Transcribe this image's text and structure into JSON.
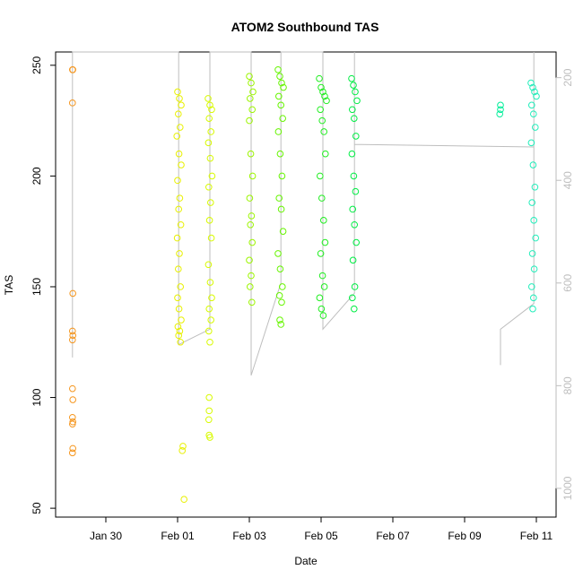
{
  "chart_data": {
    "type": "scatter",
    "title": "ATOM2 Southbound TAS",
    "xlabel": "Date",
    "ylabel": "TAS",
    "xlim": [
      -1.4,
      12.55
    ],
    "ylim": [
      46,
      256
    ],
    "y2lim": [
      1056,
      150
    ],
    "xticks": [
      {
        "value": 0,
        "label": "Jan 30"
      },
      {
        "value": 2,
        "label": "Feb 01"
      },
      {
        "value": 4,
        "label": "Feb 03"
      },
      {
        "value": 6,
        "label": "Feb 05"
      },
      {
        "value": 8,
        "label": "Feb 07"
      },
      {
        "value": 10,
        "label": "Feb 09"
      },
      {
        "value": 12,
        "label": "Feb 11"
      }
    ],
    "yticks": [
      50,
      100,
      150,
      200,
      250
    ],
    "y2ticks": [
      200,
      400,
      600,
      800,
      1000
    ],
    "y2tick_color": "#bebebe",
    "series": [
      {
        "type": "line",
        "axis": "y2",
        "color": "#bebebe",
        "x": [
          -0.93,
          -0.93,
          2.03,
          2.03,
          2.9,
          2.9,
          4.05,
          4.05,
          4.88,
          4.88,
          6.05,
          6.05,
          6.93,
          6.93,
          6.93,
          11.93,
          11.93,
          11.93,
          11.0,
          11.0
        ],
        "values": [
          745,
          150,
          150,
          720,
          690,
          150,
          150,
          780,
          600,
          150,
          150,
          690,
          620,
          150,
          330,
          335,
          150,
          640,
          690,
          760
        ]
      },
      {
        "color": "#f5961e",
        "x": [
          -0.93,
          -0.92,
          -0.93,
          -0.92,
          -0.93,
          -0.92,
          -0.93,
          -0.93,
          -0.92,
          -0.93,
          -0.92,
          -0.93,
          -0.92,
          -0.93
        ],
        "values": [
          248,
          248,
          233,
          147,
          130,
          128,
          126,
          104,
          99,
          91,
          89,
          88,
          77,
          75
        ]
      },
      {
        "color": "#e8f000",
        "x": [
          2.0,
          2.05,
          2.1,
          2.02,
          2.07,
          1.98,
          2.04,
          2.1,
          2.0,
          2.06,
          2.03,
          2.09,
          1.99,
          2.05,
          2.02,
          2.08,
          2.0,
          2.04,
          2.1,
          2.01,
          2.06,
          2.03,
          2.08,
          2.15,
          2.13,
          2.18
        ],
        "values": [
          238,
          235,
          232,
          228,
          222,
          218,
          210,
          205,
          198,
          190,
          185,
          178,
          172,
          165,
          158,
          150,
          145,
          140,
          135,
          132,
          130,
          128,
          125,
          78,
          76,
          54
        ]
      },
      {
        "color": "#d8fa00",
        "x": [
          2.85,
          2.9,
          2.95,
          2.88,
          2.93,
          2.86,
          2.91,
          2.96,
          2.87,
          2.92,
          2.89,
          2.94,
          2.86,
          2.91,
          2.95,
          2.88,
          2.93,
          2.87,
          2.9,
          2.88,
          2.88,
          2.87,
          2.88,
          2.9
        ],
        "values": [
          235,
          232,
          230,
          226,
          220,
          215,
          208,
          200,
          195,
          188,
          180,
          172,
          160,
          152,
          145,
          140,
          135,
          130,
          125,
          100,
          94,
          90,
          83,
          82
        ]
      },
      {
        "color": "#9cf500",
        "x": [
          4.0,
          4.05,
          4.1,
          4.02,
          4.08,
          4.0,
          4.04,
          4.09,
          4.01,
          4.06,
          4.03,
          4.08,
          4.0,
          4.05,
          4.02,
          4.07
        ],
        "values": [
          245,
          242,
          238,
          235,
          230,
          225,
          210,
          200,
          190,
          182,
          178,
          170,
          162,
          155,
          150,
          143
        ]
      },
      {
        "color": "#66f500",
        "x": [
          4.8,
          4.85,
          4.9,
          4.95,
          4.82,
          4.88,
          4.93,
          4.81,
          4.86,
          4.91,
          4.83,
          4.89,
          4.94,
          4.8,
          4.86,
          4.92,
          4.84,
          4.9,
          4.85,
          4.88
        ],
        "values": [
          248,
          245,
          242,
          240,
          236,
          232,
          226,
          220,
          210,
          200,
          190,
          185,
          175,
          165,
          158,
          150,
          146,
          143,
          135,
          133
        ]
      },
      {
        "color": "#22ee22",
        "x": [
          5.95,
          6.0,
          6.05,
          6.1,
          6.15,
          5.98,
          6.03,
          6.08,
          6.12,
          5.97,
          6.02,
          6.07,
          6.11,
          5.99,
          6.04,
          6.09,
          5.96,
          6.01,
          6.06
        ],
        "values": [
          244,
          240,
          238,
          236,
          234,
          230,
          225,
          220,
          210,
          200,
          190,
          180,
          170,
          165,
          155,
          150,
          145,
          140,
          137
        ]
      },
      {
        "color": "#00ee44",
        "x": [
          6.85,
          6.9,
          6.95,
          7.0,
          6.87,
          6.92,
          6.97,
          6.86,
          6.91,
          6.96,
          6.88,
          6.93,
          6.98,
          6.89,
          6.94,
          6.87,
          6.92
        ],
        "values": [
          244,
          241,
          238,
          234,
          230,
          226,
          218,
          210,
          200,
          193,
          185,
          178,
          170,
          162,
          150,
          145,
          140
        ]
      },
      {
        "color": "#00ee99",
        "x": [
          11.0,
          11.0,
          10.98
        ],
        "values": [
          232,
          230,
          228
        ]
      },
      {
        "color": "#22eebb",
        "x": [
          11.85,
          11.9,
          11.95,
          12.0,
          11.87,
          11.92,
          11.97,
          11.86,
          11.91,
          11.96,
          11.88,
          11.93,
          11.98,
          11.89,
          11.94,
          11.87,
          11.92,
          11.9
        ],
        "values": [
          242,
          240,
          238,
          236,
          232,
          228,
          222,
          215,
          205,
          195,
          188,
          180,
          172,
          165,
          158,
          150,
          145,
          140
        ]
      }
    ]
  }
}
